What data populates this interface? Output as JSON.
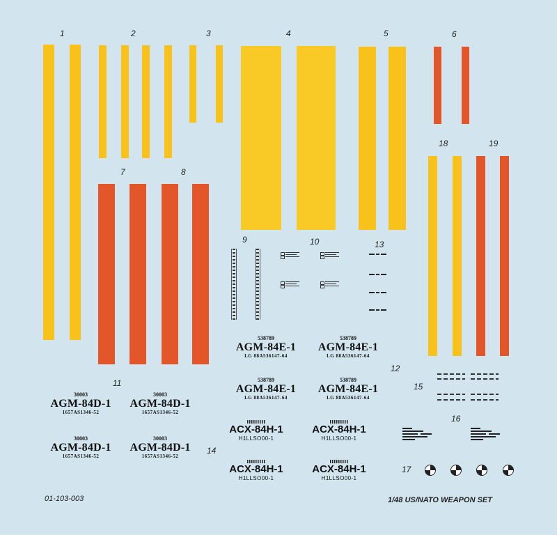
{
  "sheet": {
    "part_number": "01-103-003",
    "title": "1/48 US/NATO WEAPON SET",
    "colors": {
      "background": "#d2e5ef",
      "yellow": "#f8c21a",
      "orange": "#e2562a",
      "ink": "#111111"
    }
  },
  "labels": [
    "1",
    "2",
    "3",
    "4",
    "5",
    "6",
    "7",
    "8",
    "9",
    "10",
    "11",
    "12",
    "13",
    "14",
    "15",
    "16",
    "17",
    "18",
    "19"
  ],
  "agm84e": {
    "serial": "538789",
    "designation": "AGM-84E-1",
    "lot": "LG 88A536147-64"
  },
  "agm84d": {
    "serial": "30003",
    "designation": "AGM-84D-1",
    "lot": "1657AS1346-52"
  },
  "acx84h": {
    "designation": "ACX-84H-1",
    "code": "H1LLSO00-1"
  }
}
